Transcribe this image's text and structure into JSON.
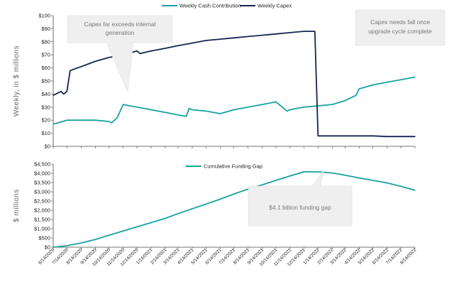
{
  "colors": {
    "cash": "#17a2a0",
    "capex": "#16244e",
    "funding": "#17a2a0",
    "callout_fill": "#efefef",
    "axis": "#444444"
  },
  "chart_data": [
    {
      "type": "line",
      "ylabel": "Weekly, in $ millions",
      "ylim": [
        0,
        100
      ],
      "y_ticks": [
        "$0",
        "$10",
        "$20",
        "$30",
        "$40",
        "$50",
        "$60",
        "$70",
        "$80",
        "$90",
        "$100"
      ],
      "legend_position": "top",
      "series": [
        {
          "name": "Weekly Cash Contribution",
          "x": [
            "6/14/2020",
            "7/14/2020",
            "8/14/2020",
            "9/14/2020",
            "10/14/2020",
            "10/20/2020",
            "11/1/2020",
            "11/14/2020",
            "12/14/2020",
            "1/14/2021",
            "2/14/2021",
            "3/14/2021",
            "4/1/2021",
            "4/7/2021",
            "4/14/2021",
            "5/14/2021",
            "6/14/2021",
            "7/14/2021",
            "8/14/2021",
            "9/14/2021",
            "10/14/2021",
            "11/7/2021",
            "11/14/2021",
            "12/14/2021",
            "1/14/2022",
            "2/14/2022",
            "3/14/2022",
            "4/7/2022",
            "4/14/2022",
            "5/14/2022",
            "6/14/2022",
            "7/14/2022",
            "8/14/2022"
          ],
          "values": [
            17,
            20,
            20,
            20,
            19,
            18,
            22,
            32,
            30,
            28,
            26,
            24,
            23,
            29,
            28,
            27,
            25,
            28,
            30,
            32,
            34,
            27,
            28,
            30,
            31,
            32,
            35,
            39,
            44,
            47,
            49,
            51,
            53
          ]
        },
        {
          "name": "Weekly Capex",
          "x": [
            "6/14/2020",
            "7/1/2020",
            "7/7/2020",
            "7/14/2020",
            "7/21/2020",
            "8/14/2020",
            "9/14/2020",
            "10/14/2020",
            "11/14/2020",
            "12/14/2020",
            "12/21/2020",
            "1/14/2021",
            "2/14/2021",
            "3/14/2021",
            "4/14/2021",
            "5/14/2021",
            "6/14/2021",
            "7/14/2021",
            "8/14/2021",
            "9/14/2021",
            "10/14/2021",
            "11/14/2021",
            "12/14/2021",
            "1/7/2022",
            "1/14/2022",
            "2/14/2022",
            "3/14/2022",
            "4/14/2022",
            "5/14/2022",
            "6/14/2022",
            "7/14/2022",
            "8/14/2022"
          ],
          "values": [
            39,
            42,
            40,
            42,
            58,
            61,
            65,
            68,
            70,
            73,
            71,
            73,
            75,
            77,
            79,
            81,
            82,
            83,
            84,
            85,
            86,
            87,
            88,
            88,
            8,
            8,
            8,
            8,
            8,
            7.5,
            7.5,
            7.5
          ]
        }
      ],
      "annotations": [
        "Capex far exceeds internal generation",
        "Capex needs fall once upgrade cycle complete"
      ]
    },
    {
      "type": "area",
      "ylabel": "$ millions",
      "ylim": [
        0,
        4500
      ],
      "y_ticks": [
        "$0",
        "$500",
        "$1,000",
        "$1,500",
        "$2,000",
        "$2,500",
        "$3,000",
        "$3,500",
        "$4,000",
        "$4,500"
      ],
      "legend_position": "top",
      "series": [
        {
          "name": "Cumulative Funding Gap",
          "x": [
            "6/14/2020",
            "7/14/2020",
            "8/14/2020",
            "9/14/2020",
            "10/14/2020",
            "11/14/2020",
            "12/14/2020",
            "1/14/2021",
            "2/14/2021",
            "3/14/2021",
            "4/14/2021",
            "5/14/2021",
            "6/14/2021",
            "7/14/2021",
            "8/14/2021",
            "9/14/2021",
            "10/14/2021",
            "11/14/2021",
            "12/14/2021",
            "1/14/2022",
            "2/14/2022",
            "3/14/2022",
            "4/14/2022",
            "5/14/2022",
            "6/14/2022",
            "7/14/2022",
            "8/14/2022"
          ],
          "values": [
            0,
            80,
            230,
            420,
            650,
            880,
            1100,
            1330,
            1560,
            1820,
            2080,
            2340,
            2600,
            2880,
            3150,
            3380,
            3620,
            3860,
            4080,
            4080,
            4020,
            3900,
            3750,
            3620,
            3480,
            3300,
            3080
          ]
        }
      ],
      "annotations": [
        "$4.1 billion funding gap"
      ]
    }
  ],
  "x_axis": {
    "ticks": [
      "6/14/2020",
      "7/14/2020",
      "8/14/2020",
      "9/14/2020",
      "10/14/2020",
      "11/14/2020",
      "12/14/2020",
      "1/14/2021",
      "2/14/2021",
      "3/14/2021",
      "4/14/2021",
      "5/14/2021",
      "6/14/2021",
      "7/14/2021",
      "8/14/2021",
      "9/14/2021",
      "10/14/2021",
      "11/14/2021",
      "12/14/2021",
      "1/14/2022",
      "2/14/2022",
      "3/14/2022",
      "4/14/2022",
      "5/14/2022",
      "6/14/2022",
      "7/14/2022",
      "8/14/2022"
    ]
  },
  "callouts": {
    "capex_exceeds": "Capex far exceeds internal generation",
    "capex_falls": "Capex needs fall once upgrade cycle complete",
    "funding_gap": "$4.1 billion funding gap"
  }
}
